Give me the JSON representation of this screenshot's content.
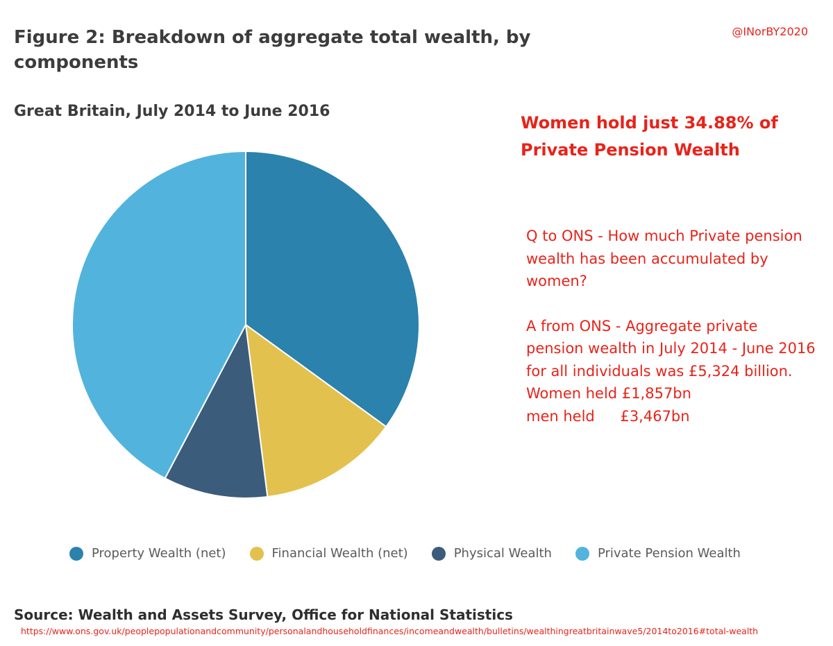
{
  "handle": "@INorBY2020",
  "chart_data": {
    "type": "pie",
    "title": "Figure 2: Breakdown of aggregate total wealth, by components",
    "subtitle": "Great Britain, July 2014 to June 2016",
    "slices": [
      {
        "label": "Property Wealth (net)",
        "value": 35.0,
        "color": "#2a82ad"
      },
      {
        "label": "Financial Wealth (net)",
        "value": 13.0,
        "color": "#e3c14e"
      },
      {
        "label": "Physical Wealth",
        "value": 9.7,
        "color": "#3c5c7c"
      },
      {
        "label": "Private Pension Wealth",
        "value": 42.3,
        "color": "#52b4dc"
      }
    ],
    "value_unit": "% (approximate, read from figure)"
  },
  "annotation": {
    "headline": "Women hold just 34.88% of Private Pension Wealth",
    "question": "Q to ONS - How much Private pension wealth has been accumulated by women?",
    "answer": "A from ONS - Aggregate private pension wealth in July 2014 - June 2016 for all individuals was £5,324 billion.",
    "women_label": "Women held",
    "women_amount": "£1,857bn",
    "men_label": "men held",
    "men_amount": "£3,467bn"
  },
  "footer": {
    "source": "Source: Wealth and Assets Survey, Office for National Statistics",
    "url": "https://www.ons.gov.uk/peoplepopulationandcommunity/personalandhouseholdfinances/incomeandwealth/bulletins/wealthingreatbritainwave5/2014to2016#total-wealth"
  }
}
